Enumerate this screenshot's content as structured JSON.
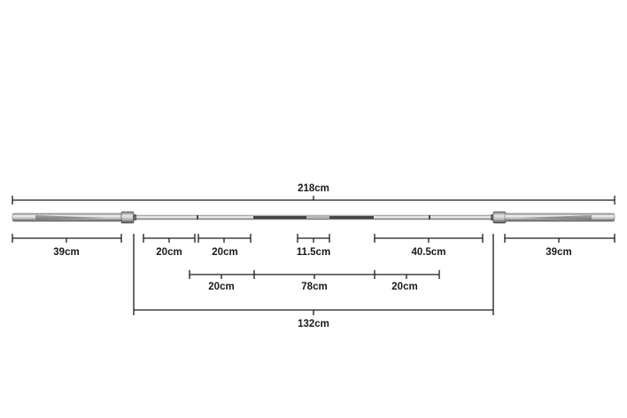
{
  "diagram": {
    "subject_icon": "barbell-icon",
    "colors": {
      "line": "#1a1a1a",
      "bar_light": "#f2f2f2",
      "bar_mid": "#c9c9c9",
      "bar_dark": "#5e5e5e",
      "knurl": "#2a2a2a"
    },
    "dimensions": {
      "total": "218cm",
      "left_sleeve": "39cm",
      "right_sleeve": "39cm",
      "left_knurl_a": "20cm",
      "left_knurl_b": "20cm",
      "center_knurl": "11.5cm",
      "right_knurl": "40.5cm",
      "mid_left": "20cm",
      "mid_center": "78cm",
      "mid_right": "20cm",
      "shaft": "132cm"
    }
  }
}
